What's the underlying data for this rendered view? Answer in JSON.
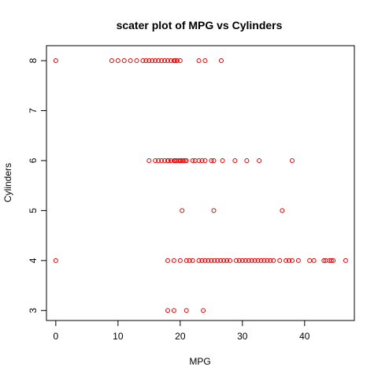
{
  "chart_data": {
    "type": "scatter",
    "title": "scater plot of MPG vs Cylinders",
    "xlabel": "MPG",
    "ylabel": "Cylinders",
    "xlim": [
      -1.5,
      48
    ],
    "ylim": [
      2.8,
      8.3
    ],
    "xticks": [
      0,
      10,
      20,
      30,
      40
    ],
    "yticks": [
      3,
      4,
      5,
      6,
      7,
      8
    ],
    "grid": false,
    "point_color": "#e00000",
    "series": [
      {
        "points": [
          [
            0,
            8
          ],
          [
            9,
            8
          ],
          [
            10,
            8
          ],
          [
            11,
            8
          ],
          [
            12,
            8
          ],
          [
            13,
            8
          ],
          [
            14,
            8
          ],
          [
            14.5,
            8
          ],
          [
            15,
            8
          ],
          [
            15.5,
            8
          ],
          [
            16,
            8
          ],
          [
            16.5,
            8
          ],
          [
            17,
            8
          ],
          [
            17.5,
            8
          ],
          [
            18,
            8
          ],
          [
            18.5,
            8
          ],
          [
            19,
            8
          ],
          [
            19.2,
            8
          ],
          [
            19.5,
            8
          ],
          [
            20,
            8
          ],
          [
            23,
            8
          ],
          [
            24,
            8
          ],
          [
            26.6,
            8
          ],
          [
            15,
            6
          ],
          [
            16,
            6
          ],
          [
            16.5,
            6
          ],
          [
            17,
            6
          ],
          [
            17.5,
            6
          ],
          [
            18,
            6
          ],
          [
            18.1,
            6
          ],
          [
            18.5,
            6
          ],
          [
            19,
            6
          ],
          [
            19.2,
            6
          ],
          [
            19.4,
            6
          ],
          [
            19.8,
            6
          ],
          [
            20,
            6
          ],
          [
            20.2,
            6
          ],
          [
            20.5,
            6
          ],
          [
            20.8,
            6
          ],
          [
            21,
            6
          ],
          [
            22,
            6
          ],
          [
            22.4,
            6
          ],
          [
            23,
            6
          ],
          [
            23.5,
            6
          ],
          [
            24,
            6
          ],
          [
            25,
            6
          ],
          [
            25.4,
            6
          ],
          [
            26.8,
            6
          ],
          [
            28.8,
            6
          ],
          [
            30.7,
            6
          ],
          [
            32.7,
            6
          ],
          [
            38,
            6
          ],
          [
            20.3,
            5
          ],
          [
            25.4,
            5
          ],
          [
            36.4,
            5
          ],
          [
            0,
            4
          ],
          [
            18,
            4
          ],
          [
            19,
            4
          ],
          [
            20,
            4
          ],
          [
            21,
            4
          ],
          [
            21.5,
            4
          ],
          [
            22,
            4
          ],
          [
            23,
            4
          ],
          [
            23.5,
            4
          ],
          [
            24,
            4
          ],
          [
            24.5,
            4
          ],
          [
            25,
            4
          ],
          [
            25.5,
            4
          ],
          [
            26,
            4
          ],
          [
            26.5,
            4
          ],
          [
            27,
            4
          ],
          [
            27.5,
            4
          ],
          [
            28,
            4
          ],
          [
            29,
            4
          ],
          [
            29.5,
            4
          ],
          [
            30,
            4
          ],
          [
            30.5,
            4
          ],
          [
            31,
            4
          ],
          [
            31.5,
            4
          ],
          [
            32,
            4
          ],
          [
            32.5,
            4
          ],
          [
            33,
            4
          ],
          [
            33.5,
            4
          ],
          [
            34,
            4
          ],
          [
            34.5,
            4
          ],
          [
            35,
            4
          ],
          [
            36,
            4
          ],
          [
            37,
            4
          ],
          [
            37.5,
            4
          ],
          [
            38,
            4
          ],
          [
            39,
            4
          ],
          [
            40.8,
            4
          ],
          [
            41.5,
            4
          ],
          [
            43.1,
            4
          ],
          [
            43.4,
            4
          ],
          [
            44,
            4
          ],
          [
            44.3,
            4
          ],
          [
            44.6,
            4
          ],
          [
            46.6,
            4
          ],
          [
            18,
            3
          ],
          [
            19,
            3
          ],
          [
            21,
            3
          ],
          [
            23.7,
            3
          ]
        ]
      }
    ]
  }
}
